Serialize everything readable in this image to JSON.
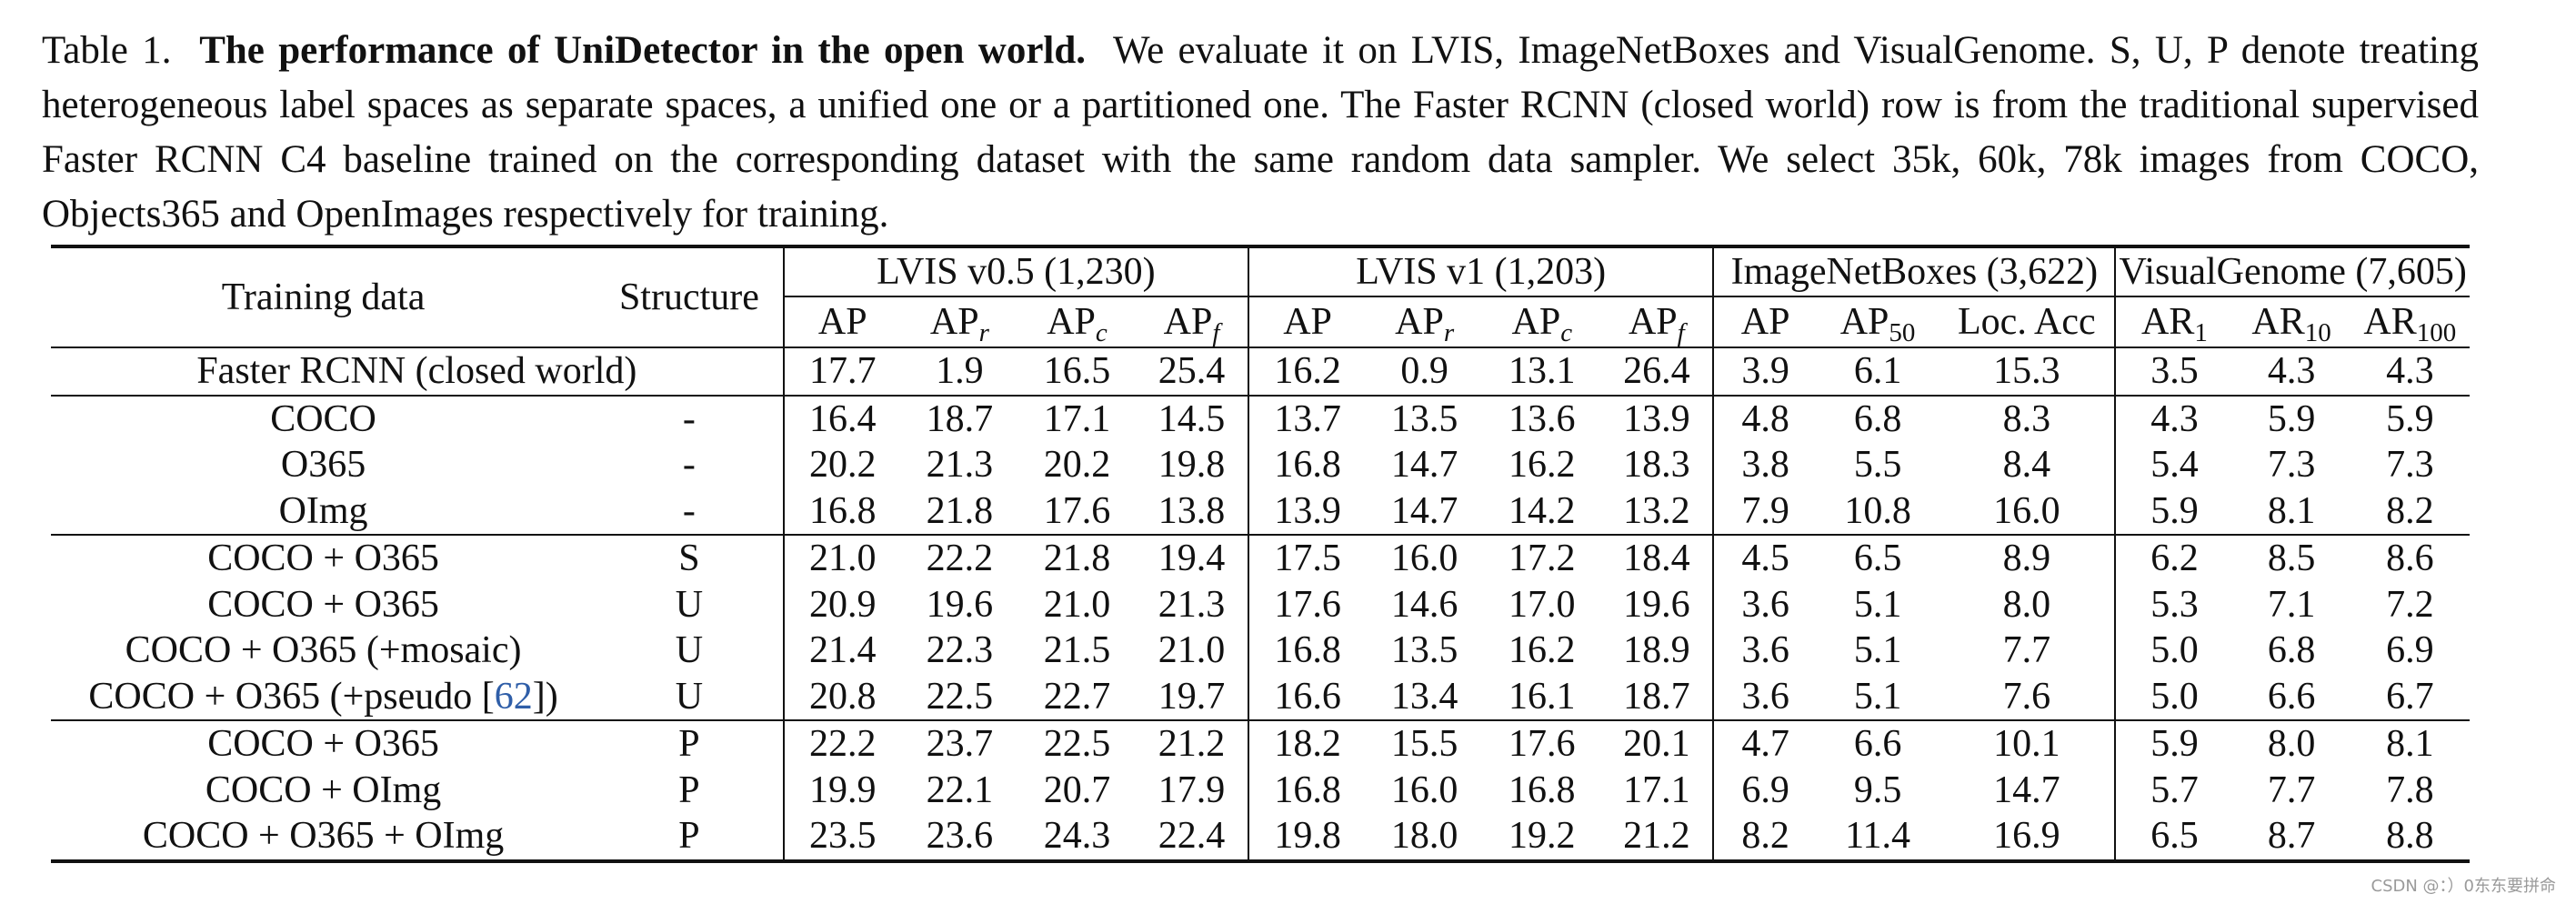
{
  "caption": {
    "label": "Table 1.",
    "title": "The performance of UniDetector in the open world.",
    "body": "We evaluate it on LVIS, ImageNetBoxes and VisualGenome. S, U, P denote treating heterogeneous label spaces as separate spaces, a unified one or a partitioned one. The Faster RCNN (closed world) row is from the traditional supervised Faster RCNN C4 baseline trained on the corresponding dataset with the same random data sampler. We select 35k, 60k, 78k images from COCO, Objects365 and OpenImages respectively for training."
  },
  "header": {
    "training_data": "Training data",
    "structure": "Structure",
    "groups": [
      {
        "label": "LVIS v0.5 (1,230)"
      },
      {
        "label": "LVIS v1 (1,203)"
      },
      {
        "label": "ImageNetBoxes (3,622)"
      },
      {
        "label": "VisualGenome (7,605)"
      }
    ],
    "cols": [
      {
        "base": "AP",
        "sub": ""
      },
      {
        "base": "AP",
        "sub": "r"
      },
      {
        "base": "AP",
        "sub": "c"
      },
      {
        "base": "AP",
        "sub": "f"
      },
      {
        "base": "AP",
        "sub": ""
      },
      {
        "base": "AP",
        "sub": "r"
      },
      {
        "base": "AP",
        "sub": "c"
      },
      {
        "base": "AP",
        "sub": "f"
      },
      {
        "base": "AP",
        "sub": ""
      },
      {
        "base": "AP",
        "sub": "50"
      },
      {
        "base": "Loc. Acc",
        "sub": ""
      },
      {
        "base": "AR",
        "sub": "1"
      },
      {
        "base": "AR",
        "sub": "10"
      },
      {
        "base": "AR",
        "sub": "100"
      }
    ]
  },
  "rows": [
    {
      "training": "Faster RCNN (closed world)",
      "structure": "",
      "values": [
        "17.7",
        "1.9",
        "16.5",
        "25.4",
        "16.2",
        "0.9",
        "13.1",
        "26.4",
        "3.9",
        "6.1",
        "15.3",
        "3.5",
        "4.3",
        "4.3"
      ]
    },
    {
      "training": "COCO",
      "structure": "-",
      "values": [
        "16.4",
        "18.7",
        "17.1",
        "14.5",
        "13.7",
        "13.5",
        "13.6",
        "13.9",
        "4.8",
        "6.8",
        "8.3",
        "4.3",
        "5.9",
        "5.9"
      ]
    },
    {
      "training": "O365",
      "structure": "-",
      "values": [
        "20.2",
        "21.3",
        "20.2",
        "19.8",
        "16.8",
        "14.7",
        "16.2",
        "18.3",
        "3.8",
        "5.5",
        "8.4",
        "5.4",
        "7.3",
        "7.3"
      ]
    },
    {
      "training": "OImg",
      "structure": "-",
      "values": [
        "16.8",
        "21.8",
        "17.6",
        "13.8",
        "13.9",
        "14.7",
        "14.2",
        "13.2",
        "7.9",
        "10.8",
        "16.0",
        "5.9",
        "8.1",
        "8.2"
      ]
    },
    {
      "training": "COCO + O365",
      "structure": "S",
      "values": [
        "21.0",
        "22.2",
        "21.8",
        "19.4",
        "17.5",
        "16.0",
        "17.2",
        "18.4",
        "4.5",
        "6.5",
        "8.9",
        "6.2",
        "8.5",
        "8.6"
      ]
    },
    {
      "training": "COCO + O365",
      "structure": "U",
      "values": [
        "20.9",
        "19.6",
        "21.0",
        "21.3",
        "17.6",
        "14.6",
        "17.0",
        "19.6",
        "3.6",
        "5.1",
        "8.0",
        "5.3",
        "7.1",
        "7.2"
      ]
    },
    {
      "training": "COCO + O365 (+mosaic)",
      "structure": "U",
      "values": [
        "21.4",
        "22.3",
        "21.5",
        "21.0",
        "16.8",
        "13.5",
        "16.2",
        "18.9",
        "3.6",
        "5.1",
        "7.7",
        "5.0",
        "6.8",
        "6.9"
      ]
    },
    {
      "training": "COCO + O365 (+pseudo [",
      "cite": "62",
      "training_end": "])",
      "structure": "U",
      "values": [
        "20.8",
        "22.5",
        "22.7",
        "19.7",
        "16.6",
        "13.4",
        "16.1",
        "18.7",
        "3.6",
        "5.1",
        "7.6",
        "5.0",
        "6.6",
        "6.7"
      ]
    },
    {
      "training": "COCO + O365",
      "structure": "P",
      "values": [
        "22.2",
        "23.7",
        "22.5",
        "21.2",
        "18.2",
        "15.5",
        "17.6",
        "20.1",
        "4.7",
        "6.6",
        "10.1",
        "5.9",
        "8.0",
        "8.1"
      ]
    },
    {
      "training": "COCO + OImg",
      "structure": "P",
      "values": [
        "19.9",
        "22.1",
        "20.7",
        "17.9",
        "16.8",
        "16.0",
        "16.8",
        "17.1",
        "6.9",
        "9.5",
        "14.7",
        "5.7",
        "7.7",
        "7.8"
      ]
    },
    {
      "training": "COCO + O365 + OImg",
      "structure": "P",
      "bold": true,
      "values": [
        "23.5",
        "23.6",
        "24.3",
        "22.4",
        "19.8",
        "18.0",
        "19.2",
        "21.2",
        "8.2",
        "11.4",
        "16.9",
        "6.5",
        "8.7",
        "8.8"
      ]
    }
  ],
  "watermark": "CSDN @：）0东东要拼命"
}
